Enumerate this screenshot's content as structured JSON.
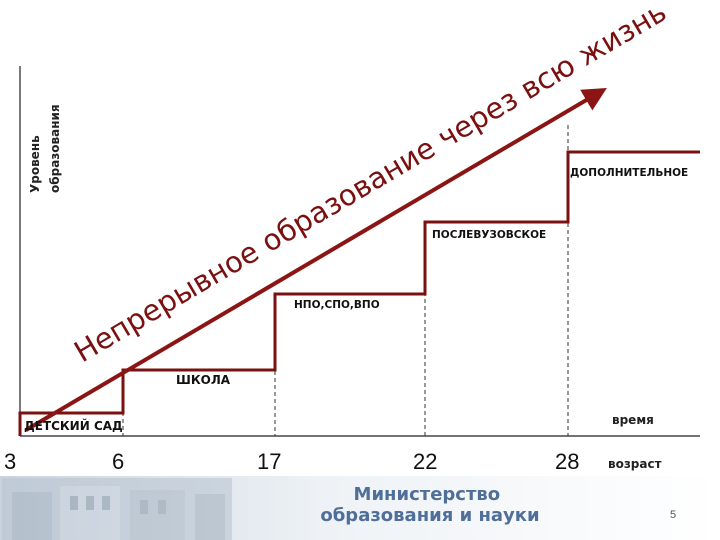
{
  "y_axis_label": [
    "Уровень",
    "образования"
  ],
  "slogan": "Непрерывное образование через всю жизнь",
  "stages": [
    {
      "label": "ДЕТСКИЙ САД"
    },
    {
      "label": "ШКОЛА"
    },
    {
      "label": "НПО,СПО,ВПО"
    },
    {
      "label": "ПОСЛЕВУЗОВСКОЕ"
    },
    {
      "label": "ДОПОЛНИТЕЛЬНОЕ"
    }
  ],
  "x_ticks": [
    "3",
    "6",
    "17",
    "22",
    "28"
  ],
  "x_axis_label_time": "время",
  "x_axis_label_age": "возраст",
  "footer": {
    "ministry_lines": [
      "Министерство",
      "образования и науки"
    ],
    "page_number": "5"
  },
  "colors": {
    "arrow": "#8b1414",
    "stairs": "#7a1010",
    "slogan": "#7a1010",
    "ministry_text": "#4f6f99",
    "footer_band": "#dfe6ee"
  }
}
